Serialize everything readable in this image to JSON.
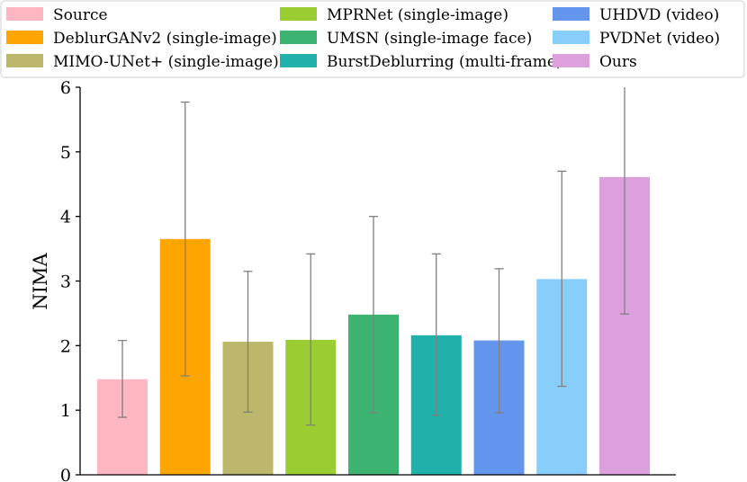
{
  "chart_data": {
    "type": "bar",
    "ylabel": "NIMA",
    "ylim": [
      0,
      6
    ],
    "yticks": [
      "0",
      "1",
      "2",
      "3",
      "4",
      "5",
      "6"
    ],
    "grid": false,
    "legend_position": "top",
    "categories": [
      "Source",
      "DeblurGANv2 (single-image)",
      "MIMO-UNet+ (single-image)",
      "MPRNet (single-image)",
      "UMSN (single-image face)",
      "BurstDeblurring (multi-frame)",
      "UHDVD (video)",
      "PVDNet (video)",
      "Ours"
    ],
    "values": [
      1.48,
      3.65,
      2.06,
      2.09,
      2.48,
      2.16,
      2.08,
      3.03,
      4.61
    ],
    "error_low": [
      0.89,
      1.53,
      0.97,
      0.77,
      0.96,
      0.92,
      0.96,
      1.37,
      2.49
    ],
    "error_high": [
      2.08,
      5.77,
      3.15,
      3.42,
      4.0,
      3.42,
      3.19,
      4.7,
      6.0
    ],
    "colors": [
      "#ffb6c1",
      "#ffa500",
      "#bdb76b",
      "#9acd32",
      "#3cb371",
      "#20b2aa",
      "#6495ed",
      "#87cefa",
      "#dda0dd"
    ],
    "error_color": "#808080"
  }
}
